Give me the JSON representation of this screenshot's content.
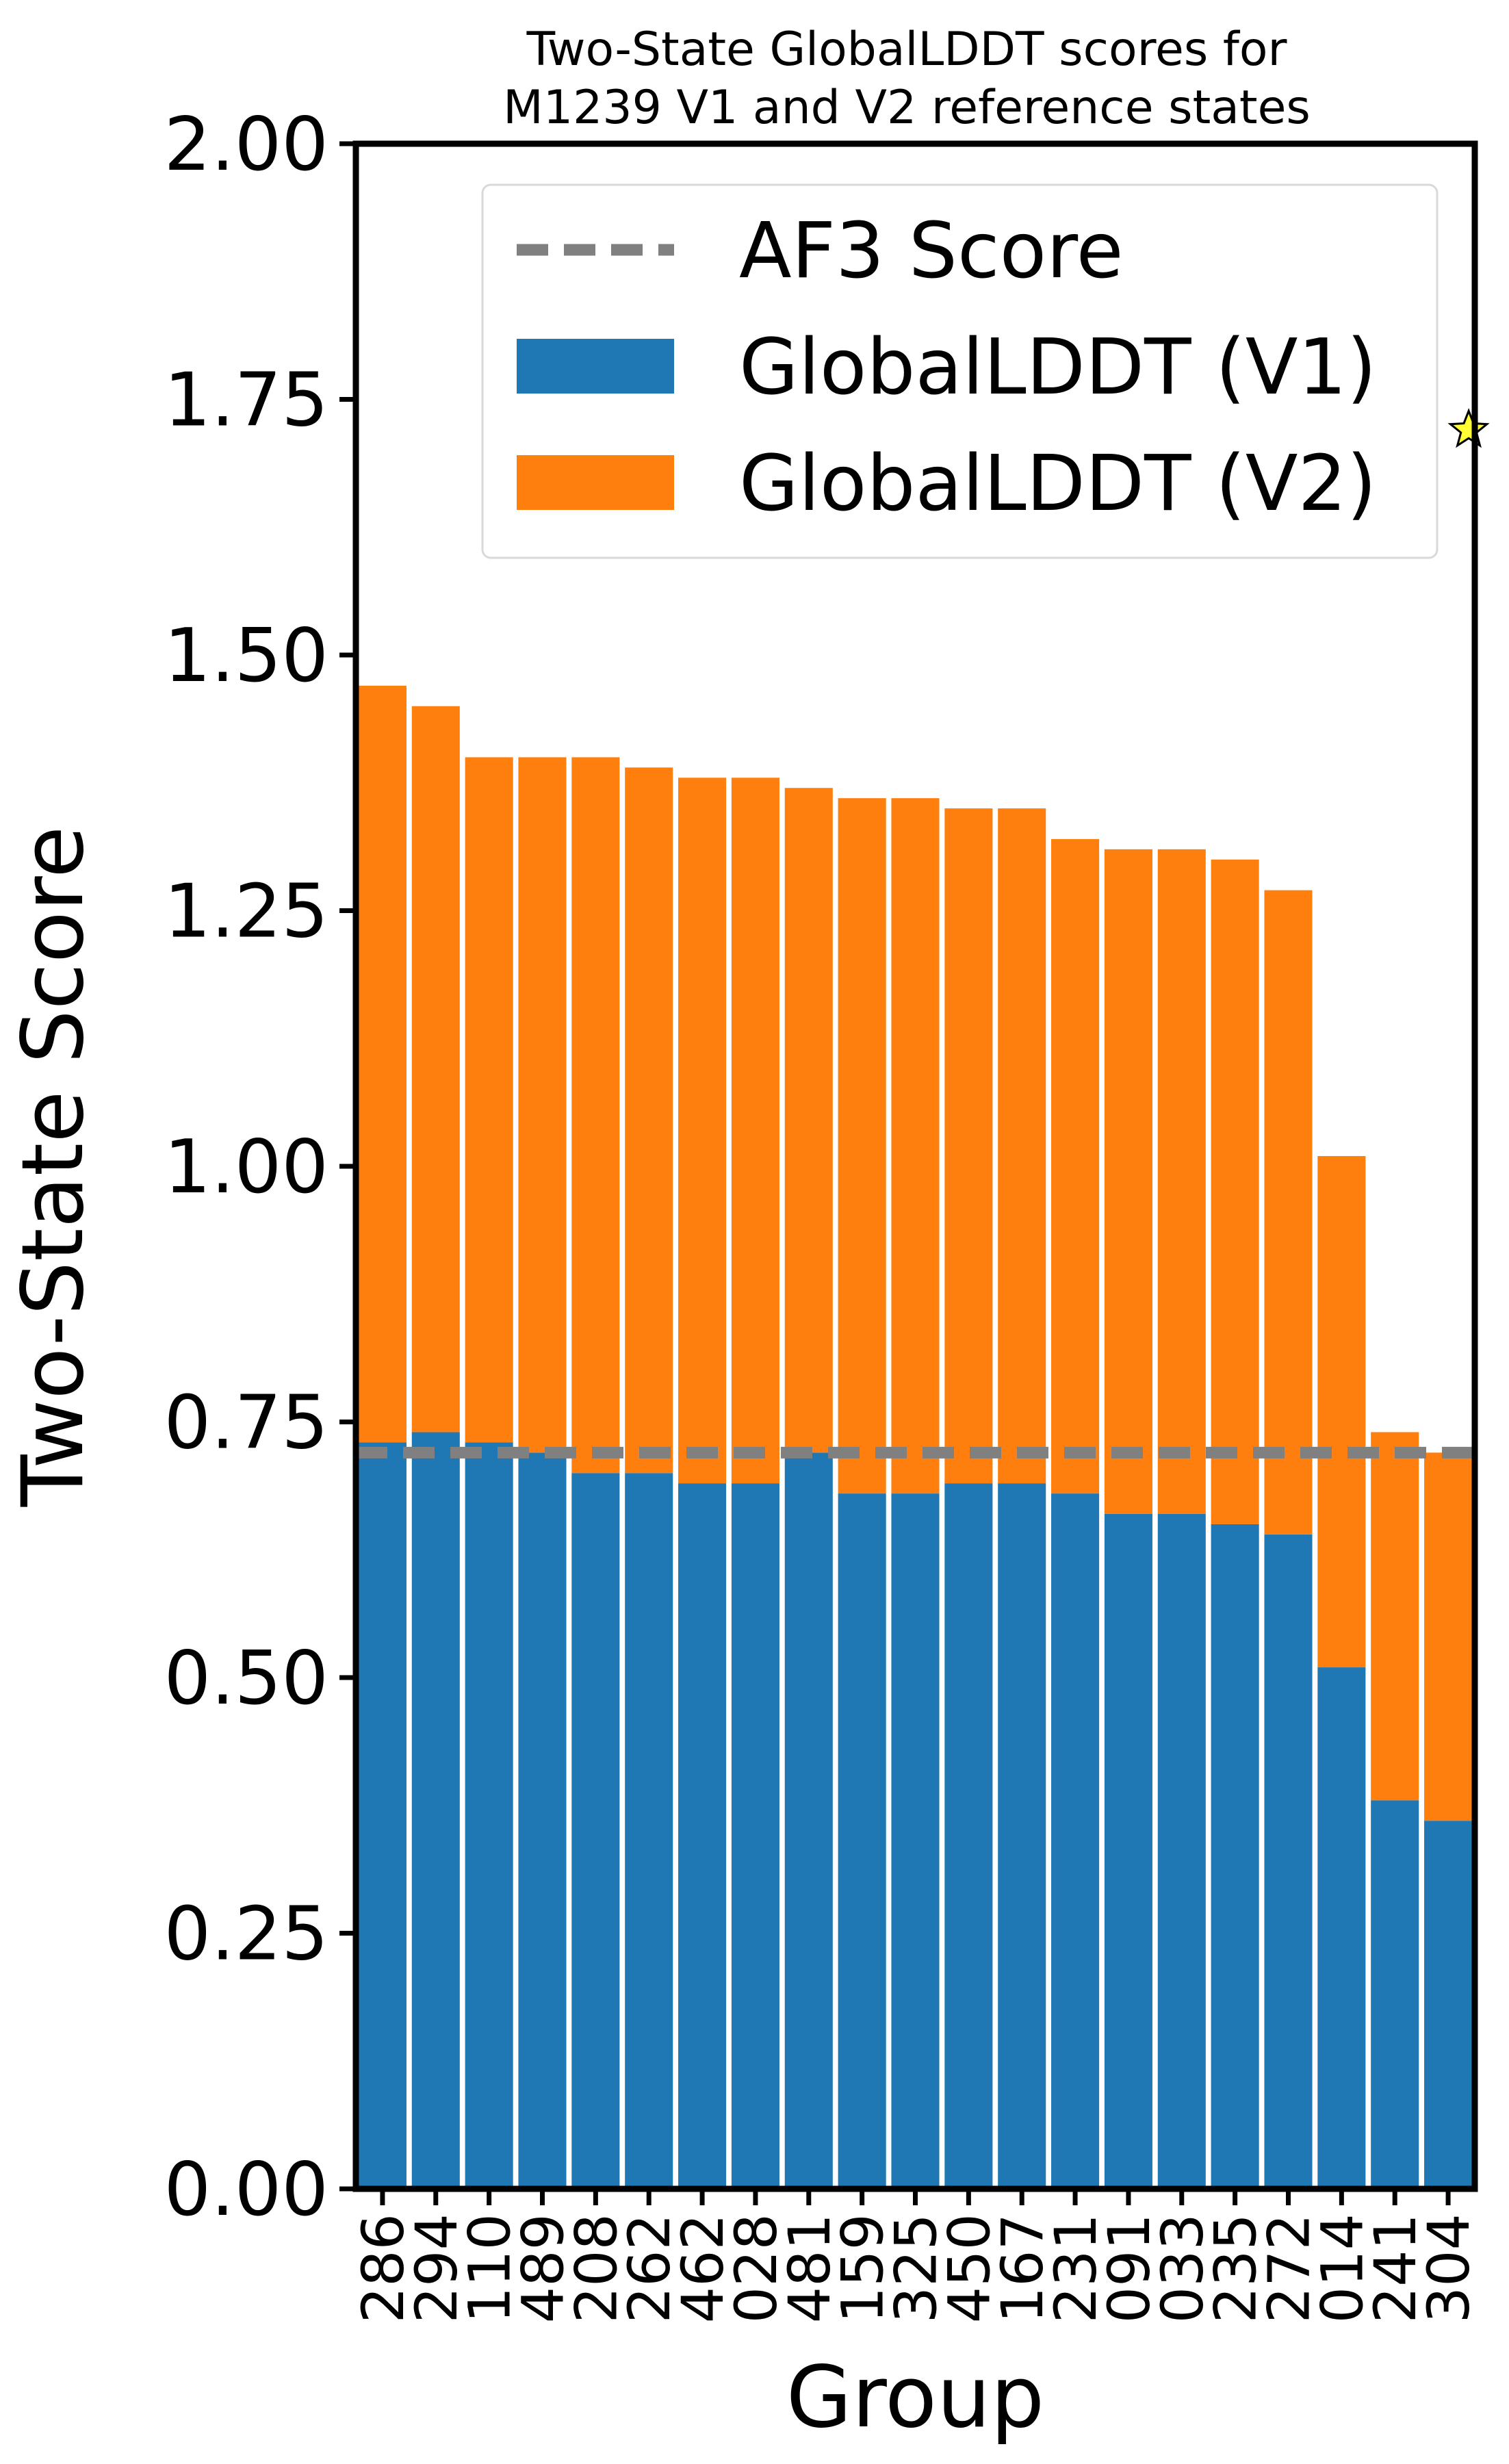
{
  "chart_data": {
    "type": "bar",
    "stacked": true,
    "title_line1": "Two-State GlobalLDDT scores for",
    "title_line2": "M1239 V1 and V2 reference states",
    "xlabel": "Group",
    "ylabel": "Two-State Score",
    "ylim": [
      0,
      2.0
    ],
    "yticks": [
      "0.00",
      "0.25",
      "0.50",
      "0.75",
      "1.00",
      "1.25",
      "1.50",
      "1.75",
      "2.00"
    ],
    "grid": false,
    "legend_position": "top-right",
    "categories": [
      "286",
      "294",
      "110",
      "489",
      "208",
      "262",
      "462",
      "028",
      "481",
      "159",
      "325",
      "450",
      "167",
      "231",
      "091",
      "033",
      "235",
      "272",
      "014",
      "241",
      "304"
    ],
    "series": [
      {
        "name": "GlobalLDDT (V1)",
        "color": "#1f77b4",
        "values": [
          0.73,
          0.74,
          0.73,
          0.72,
          0.7,
          0.7,
          0.69,
          0.69,
          0.72,
          0.68,
          0.68,
          0.69,
          0.69,
          0.68,
          0.66,
          0.66,
          0.65,
          0.64,
          0.51,
          0.38,
          0.36
        ]
      },
      {
        "name": "GlobalLDDT (V2)",
        "color": "#ff7f0e",
        "values": [
          0.74,
          0.71,
          0.67,
          0.68,
          0.7,
          0.69,
          0.69,
          0.69,
          0.65,
          0.68,
          0.68,
          0.66,
          0.66,
          0.64,
          0.65,
          0.65,
          0.65,
          0.63,
          0.5,
          0.36,
          0.36
        ]
      }
    ],
    "reference_line": {
      "name": "AF3 Score",
      "value": 0.72,
      "color": "#808080",
      "style": "dashed"
    },
    "star_marker": {
      "x": "304",
      "y": 1.72,
      "color": "#ffff33"
    }
  }
}
